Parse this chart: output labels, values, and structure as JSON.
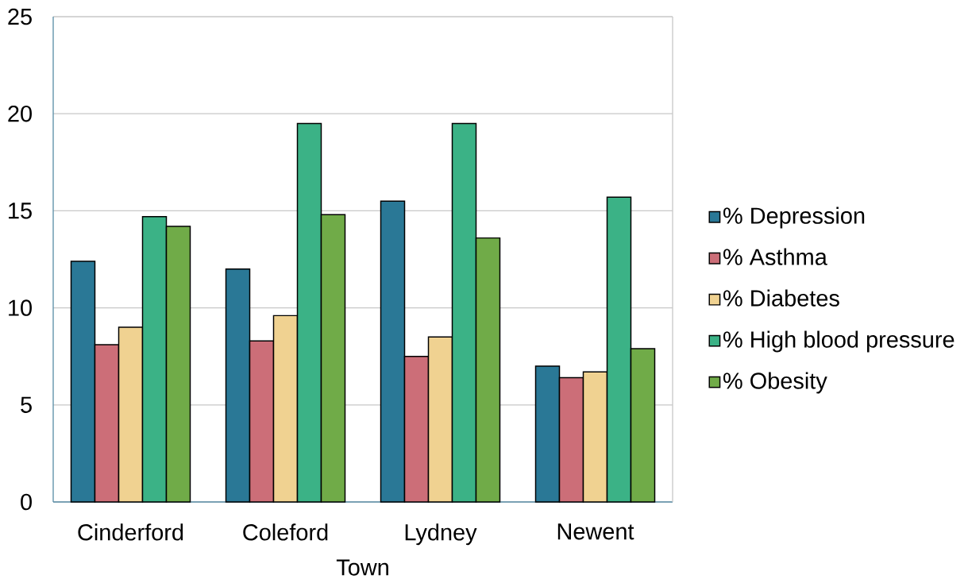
{
  "chart_data": {
    "type": "bar",
    "xlabel": "Town",
    "categories": [
      "Cinderford",
      "Coleford",
      "Lydney",
      "Newent"
    ],
    "series": [
      {
        "name": "% Depression",
        "color": "#2a7896",
        "values": [
          12.4,
          12.0,
          15.5,
          7.0
        ]
      },
      {
        "name": "% Asthma",
        "color": "#cc6e78",
        "values": [
          8.1,
          8.3,
          7.5,
          6.4
        ]
      },
      {
        "name": "% Diabetes",
        "color": "#f0d291",
        "values": [
          9.0,
          9.6,
          8.5,
          6.7
        ]
      },
      {
        "name": "% High blood pressure",
        "color": "#3bb286",
        "values": [
          14.7,
          19.5,
          19.5,
          15.7
        ]
      },
      {
        "name": "% Obesity",
        "color": "#70ab48",
        "values": [
          14.2,
          14.8,
          13.6,
          7.9
        ]
      }
    ],
    "ylim": [
      0,
      25
    ],
    "yticks": [
      0,
      5,
      10,
      15,
      20,
      25
    ],
    "grid": "y",
    "legend": "right"
  }
}
